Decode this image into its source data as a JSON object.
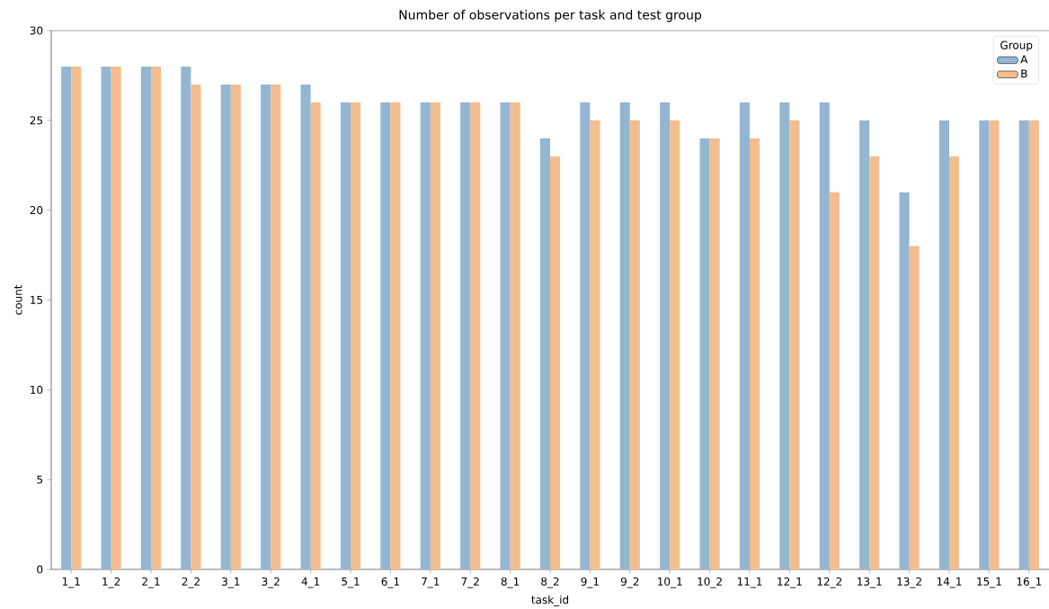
{
  "chart_data": {
    "type": "bar",
    "title": "Number of observations per task and test group",
    "xlabel": "task_id",
    "ylabel": "count",
    "legend_title": "Group",
    "legend": "top right",
    "categories": [
      "1_1",
      "1_2",
      "2_1",
      "2_2",
      "3_1",
      "3_2",
      "4_1",
      "5_1",
      "6_1",
      "7_1",
      "7_2",
      "8_1",
      "8_2",
      "9_1",
      "9_2",
      "10_1",
      "10_2",
      "11_1",
      "12_1",
      "12_2",
      "13_1",
      "13_2",
      "14_1",
      "15_1",
      "16_1"
    ],
    "series": [
      {
        "name": "A",
        "color": "#94b6d2",
        "values": [
          28,
          28,
          28,
          28,
          27,
          27,
          27,
          26,
          26,
          26,
          26,
          26,
          24,
          26,
          26,
          26,
          24,
          26,
          26,
          26,
          25,
          21,
          25,
          25,
          25
        ]
      },
      {
        "name": "B",
        "color": "#f2be90",
        "values": [
          28,
          28,
          28,
          27,
          27,
          27,
          26,
          26,
          26,
          26,
          26,
          26,
          23,
          25,
          25,
          25,
          24,
          24,
          25,
          21,
          23,
          18,
          23,
          25,
          25
        ]
      }
    ],
    "ylim": [
      0,
      30
    ],
    "yticks": [
      0,
      5,
      10,
      15,
      20,
      25,
      30
    ]
  }
}
